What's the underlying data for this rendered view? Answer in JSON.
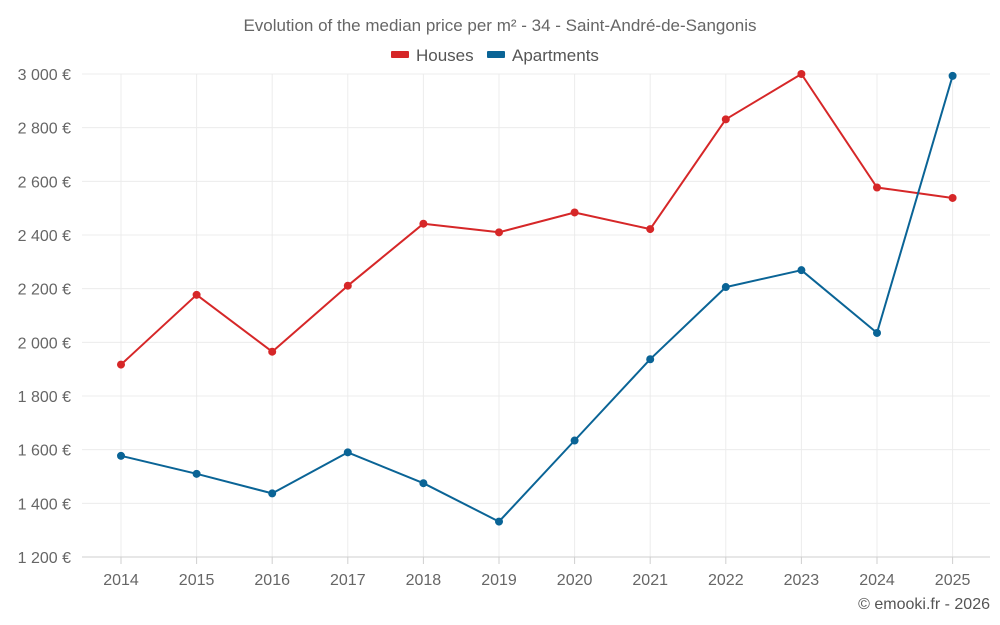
{
  "chart_data": {
    "type": "line",
    "title": "Evolution of the median price per m² - 34 - Saint-André-de-Sangonis",
    "xlabel": "",
    "ylabel": "",
    "categories": [
      "2014",
      "2015",
      "2016",
      "2017",
      "2018",
      "2019",
      "2020",
      "2021",
      "2022",
      "2023",
      "2024",
      "2025"
    ],
    "ylim": [
      1200,
      3000
    ],
    "yticks": [
      1200,
      1400,
      1600,
      1800,
      2000,
      2200,
      2400,
      2600,
      2800,
      3000
    ],
    "ytick_labels": [
      "1 200 €",
      "1 400 €",
      "1 600 €",
      "1 800 €",
      "2 000 €",
      "2 200 €",
      "2 400 €",
      "2 600 €",
      "2 800 €",
      "3 000 €"
    ],
    "grid": true,
    "legend_position": "top-center",
    "series": [
      {
        "name": "Houses",
        "color": "#d62728",
        "values": [
          1917,
          2177,
          1965,
          2211,
          2442,
          2410,
          2484,
          2422,
          2831,
          3000,
          2577,
          2538
        ]
      },
      {
        "name": "Apartments",
        "color": "#0a6496",
        "values": [
          1577,
          1510,
          1437,
          1590,
          1475,
          1332,
          1634,
          1937,
          2206,
          2269,
          2035,
          2993
        ]
      }
    ],
    "credit": "© emooki.fr - 2026"
  }
}
